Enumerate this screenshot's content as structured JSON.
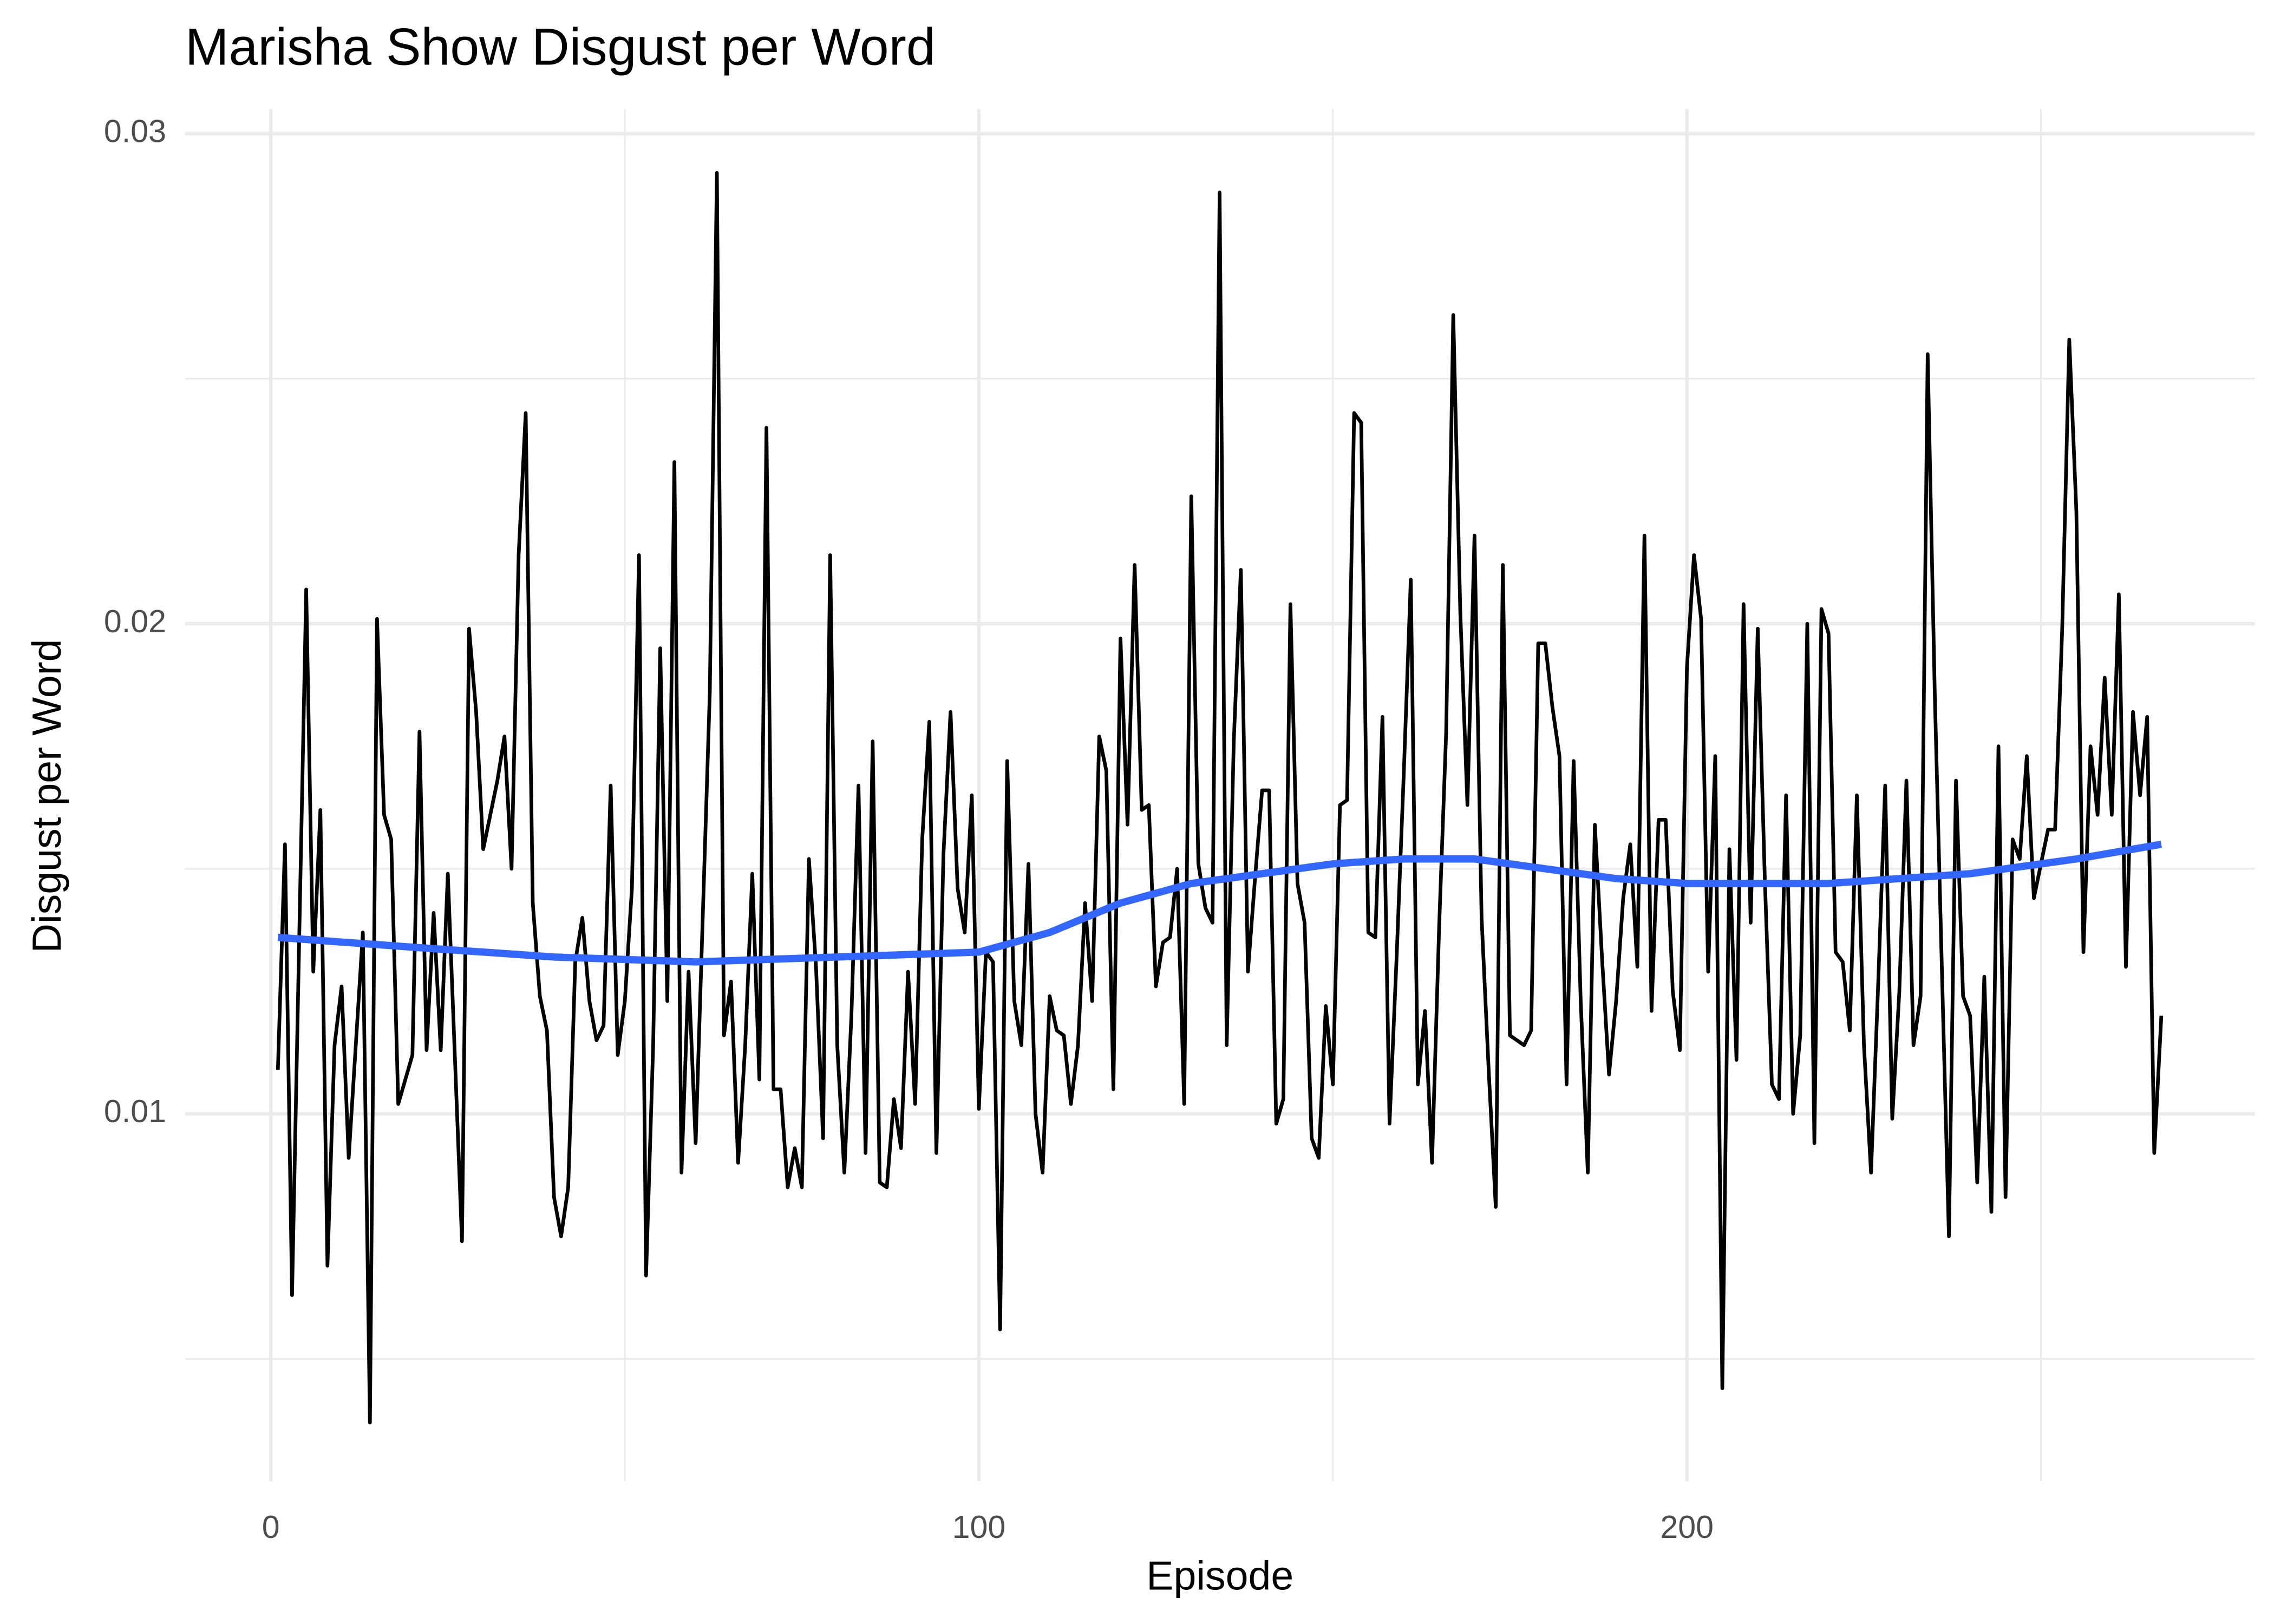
{
  "chart_data": {
    "type": "line",
    "title": "Marisha Show Disgust per Word",
    "x_label": "Episode",
    "y_label": "Disgust per Word",
    "x": [
      1,
      2,
      3,
      5,
      6,
      7,
      8,
      9,
      10,
      11,
      13,
      14,
      15,
      16,
      17,
      18,
      20,
      21,
      22,
      23,
      24,
      25,
      27,
      28,
      29,
      30,
      32,
      33,
      34,
      35,
      36,
      37,
      38,
      39,
      40,
      41,
      42,
      43,
      44,
      45,
      46,
      47,
      48,
      49,
      50,
      51,
      52,
      53,
      54,
      55,
      56,
      57,
      58,
      59,
      60,
      62,
      63,
      64,
      65,
      66,
      67,
      68,
      69,
      70,
      71,
      72,
      73,
      74,
      75,
      76,
      77,
      78,
      79,
      80,
      81,
      82,
      83,
      84,
      85,
      86,
      87,
      88,
      89,
      90,
      91,
      92,
      93,
      94,
      95,
      96,
      97,
      98,
      99,
      100,
      101,
      102,
      103,
      104,
      105,
      106,
      107,
      108,
      109,
      110,
      111,
      112,
      113,
      114,
      115,
      116,
      117,
      118,
      119,
      120,
      121,
      122,
      123,
      124,
      125,
      126,
      127,
      128,
      129,
      130,
      131,
      132,
      133,
      134,
      135,
      136,
      137,
      138,
      139,
      140,
      141,
      142,
      143,
      144,
      145,
      146,
      147,
      148,
      149,
      150,
      151,
      152,
      153,
      154,
      155,
      156,
      157,
      158,
      159,
      160,
      161,
      162,
      163,
      164,
      165,
      166,
      167,
      168,
      169,
      170,
      171,
      172,
      173,
      174,
      175,
      176,
      177,
      178,
      179,
      180,
      181,
      182,
      183,
      184,
      185,
      186,
      187,
      188,
      189,
      190,
      191,
      192,
      193,
      194,
      195,
      196,
      197,
      198,
      199,
      200,
      201,
      202,
      203,
      204,
      205,
      206,
      207,
      208,
      209,
      210,
      211,
      212,
      213,
      214,
      215,
      216,
      217,
      218,
      219,
      220,
      221,
      222,
      223,
      224,
      225,
      226,
      227,
      228,
      229,
      230,
      231,
      232,
      233,
      234,
      235,
      236,
      237,
      238,
      239,
      240,
      241,
      242,
      243,
      244,
      245,
      246,
      247,
      248,
      249,
      250,
      251,
      252,
      253,
      254,
      255,
      256,
      257,
      258,
      259,
      260,
      261,
      262,
      263,
      264,
      265,
      266,
      267
    ],
    "series": [
      {
        "color": "#000000",
        "values": [
          0.0109,
          0.0155,
          0.0063,
          0.0207,
          0.0129,
          0.0162,
          0.0069,
          0.0114,
          0.0126,
          0.0091,
          0.0137,
          0.0037,
          0.0201,
          0.0161,
          0.0156,
          0.0102,
          0.0112,
          0.0178,
          0.0113,
          0.0141,
          0.0113,
          0.0149,
          0.0074,
          0.0199,
          0.0182,
          0.0154,
          0.0168,
          0.0177,
          0.015,
          0.0214,
          0.0243,
          0.0143,
          0.0124,
          0.0117,
          0.0083,
          0.0075,
          0.0085,
          0.0131,
          0.014,
          0.0123,
          0.0115,
          0.0118,
          0.0167,
          0.0112,
          0.0123,
          0.0146,
          0.0214,
          0.0067,
          0.0114,
          0.0195,
          0.0123,
          0.0233,
          0.0088,
          0.0129,
          0.0094,
          0.0186,
          0.0292,
          0.0116,
          0.0127,
          0.009,
          0.0114,
          0.0149,
          0.0107,
          0.024,
          0.0105,
          0.0105,
          0.0085,
          0.0093,
          0.0085,
          0.0152,
          0.013,
          0.0095,
          0.0214,
          0.0114,
          0.0088,
          0.012,
          0.0167,
          0.0092,
          0.0176,
          0.0086,
          0.0085,
          0.0103,
          0.0093,
          0.0129,
          0.0102,
          0.0156,
          0.018,
          0.0092,
          0.0153,
          0.0182,
          0.0146,
          0.0137,
          0.0165,
          0.0101,
          0.0133,
          0.0131,
          0.0056,
          0.0172,
          0.0123,
          0.0114,
          0.0151,
          0.01,
          0.0088,
          0.0124,
          0.0117,
          0.0116,
          0.0102,
          0.0114,
          0.0143,
          0.0123,
          0.0177,
          0.017,
          0.0105,
          0.0197,
          0.0159,
          0.0212,
          0.0162,
          0.0163,
          0.0126,
          0.0135,
          0.0136,
          0.015,
          0.0102,
          0.0226,
          0.0151,
          0.0142,
          0.0139,
          0.0288,
          0.0114,
          0.0176,
          0.0211,
          0.0129,
          0.0148,
          0.0166,
          0.0166,
          0.0098,
          0.0103,
          0.0204,
          0.0147,
          0.0139,
          0.0095,
          0.0091,
          0.0122,
          0.0106,
          0.0163,
          0.0164,
          0.0243,
          0.0241,
          0.0137,
          0.0136,
          0.0181,
          0.0098,
          0.0132,
          0.0169,
          0.0209,
          0.0106,
          0.0121,
          0.009,
          0.0138,
          0.0178,
          0.0263,
          0.0202,
          0.0163,
          0.0218,
          0.014,
          0.0109,
          0.0081,
          0.0212,
          0.0116,
          0.0115,
          0.0114,
          0.0117,
          0.0196,
          0.0196,
          0.0183,
          0.0173,
          0.0106,
          0.0172,
          0.0123,
          0.0088,
          0.0159,
          0.0132,
          0.0108,
          0.0123,
          0.0144,
          0.0155,
          0.013,
          0.0218,
          0.0121,
          0.016,
          0.016,
          0.0125,
          0.0113,
          0.0191,
          0.0214,
          0.0201,
          0.0129,
          0.0173,
          0.0044,
          0.0154,
          0.0111,
          0.0204,
          0.0139,
          0.0199,
          0.0148,
          0.0106,
          0.0103,
          0.0165,
          0.01,
          0.0116,
          0.02,
          0.0094,
          0.0203,
          0.0198,
          0.0133,
          0.0131,
          0.0117,
          0.0165,
          0.0114,
          0.0088,
          0.0126,
          0.0167,
          0.0099,
          0.0125,
          0.0168,
          0.0114,
          0.0124,
          0.0255,
          0.0186,
          0.013,
          0.0075,
          0.0168,
          0.0124,
          0.012,
          0.0086,
          0.0128,
          0.008,
          0.0175,
          0.0083,
          0.0156,
          0.0152,
          0.0173,
          0.0144,
          0.0151,
          0.0158,
          0.0158,
          0.0199,
          0.0258,
          0.0223,
          0.0133,
          0.0175,
          0.0161,
          0.0189,
          0.0161,
          0.0206,
          0.013,
          0.0182,
          0.0165,
          0.0181,
          0.0092,
          0.012
        ]
      }
    ],
    "trend": {
      "color": "#3366FF",
      "x": [
        1,
        20,
        40,
        60,
        80,
        100,
        110,
        120,
        130,
        140,
        150,
        160,
        170,
        180,
        190,
        200,
        220,
        240,
        255,
        267
      ],
      "values": [
        0.0136,
        0.0134,
        0.0132,
        0.0131,
        0.0132,
        0.0133,
        0.0137,
        0.0143,
        0.0147,
        0.0149,
        0.0151,
        0.0152,
        0.0152,
        0.015,
        0.0148,
        0.0147,
        0.0147,
        0.0149,
        0.0152,
        0.0155
      ]
    },
    "xlim": [
      -12.1,
      280.2
    ],
    "xticks": [
      0,
      100,
      200
    ],
    "xminor": [
      50,
      150,
      250
    ],
    "ylim": [
      0.0025,
      0.0305
    ],
    "yticks": [
      0.01,
      0.02,
      0.03
    ],
    "yminor": [
      0.005,
      0.015,
      0.025
    ],
    "grid": true
  }
}
